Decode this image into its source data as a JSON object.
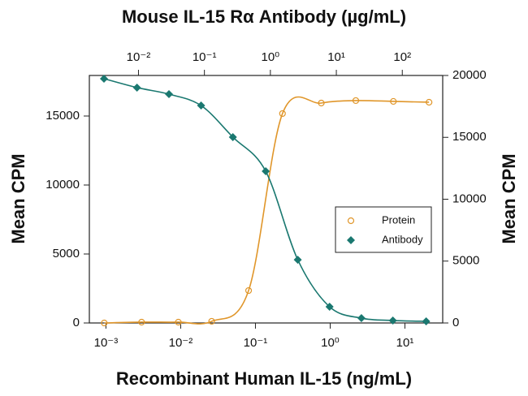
{
  "chart_data": {
    "type": "scatter",
    "x2label": "Mouse IL-15 Rα Antibody (µg/mL)",
    "xlabel": "Recombinant Human IL-15 (ng/mL)",
    "ylabel": "Mean CPM",
    "y2label": "Mean CPM",
    "xscale": "log",
    "x2scale": "log",
    "xlim": [
      0.0006,
      32
    ],
    "xticks": [
      {
        "value": 0.001,
        "label": "10⁻³"
      },
      {
        "value": 0.01,
        "label": "10⁻²"
      },
      {
        "value": 0.1,
        "label": "10⁻¹"
      },
      {
        "value": 1,
        "label": "10⁰"
      },
      {
        "value": 10,
        "label": "10¹"
      }
    ],
    "x2lim": [
      0.0018,
      410
    ],
    "x2ticks": [
      {
        "value": 0.01,
        "label": "10⁻²"
      },
      {
        "value": 0.1,
        "label": "10⁻¹"
      },
      {
        "value": 1,
        "label": "10⁰"
      },
      {
        "value": 10,
        "label": "10¹"
      },
      {
        "value": 100,
        "label": "10²"
      }
    ],
    "ylim": [
      0,
      17940
    ],
    "yticks": [
      0,
      5000,
      10000,
      15000
    ],
    "y2lim": [
      0,
      20000
    ],
    "y2ticks": [
      0,
      5000,
      10000,
      15000,
      20000
    ],
    "legend": "right",
    "series": [
      {
        "name": "Protein",
        "color": "#e0962a",
        "marker": "circle",
        "x": [
          0.00095,
          0.003,
          0.0093,
          0.026,
          0.081,
          0.23,
          0.76,
          2.2,
          7.0,
          21
        ],
        "values": [
          0,
          60,
          60,
          120,
          2350,
          15180,
          15940,
          16120,
          16060,
          16000
        ]
      },
      {
        "name": "Antibody",
        "color": "#1a7870",
        "marker": "diamond",
        "axis": "y2",
        "xaxis": "x2",
        "x": [
          0.003,
          0.0095,
          0.029,
          0.089,
          0.27,
          0.85,
          2.6,
          7.9,
          24,
          72,
          230
        ],
        "values": [
          19740,
          19020,
          18490,
          17570,
          15020,
          12260,
          5110,
          1310,
          390,
          200,
          130
        ]
      }
    ]
  }
}
